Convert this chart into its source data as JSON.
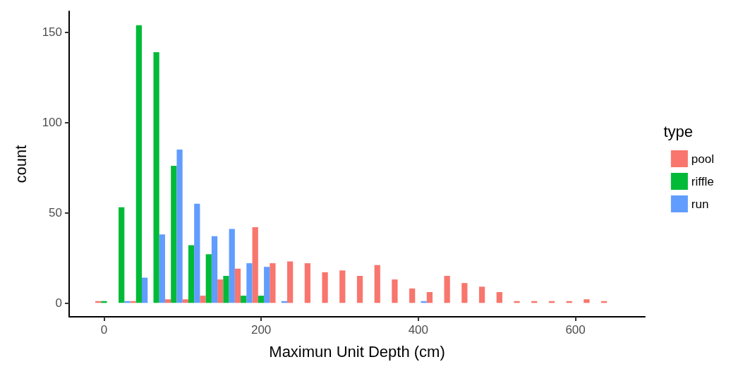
{
  "chart_data": {
    "type": "histogram",
    "xlabel": "Maximun Unit Depth (cm)",
    "ylabel": "count",
    "legend_title": "type",
    "legend": "right",
    "grid": false,
    "bins": [
      -11.1,
      11.1,
      33.3,
      55.5,
      77.7,
      99.9,
      122.1,
      144.3,
      166.5,
      188.7,
      210.9,
      233.1,
      255.3,
      277.5,
      299.7,
      321.9,
      344.1,
      366.3,
      388.5,
      410.7,
      432.9,
      455.1,
      477.3,
      499.5,
      521.7,
      543.9,
      566.1,
      588.3,
      610.5,
      632.7,
      654.9
    ],
    "series": [
      {
        "name": "pool",
        "color": "#f8766d",
        "values": [
          1,
          0,
          1,
          0,
          2,
          2,
          4,
          13,
          19,
          42,
          22,
          23,
          22,
          17,
          18,
          15,
          21,
          13,
          8,
          6,
          15,
          11,
          9,
          6,
          1,
          1,
          1,
          1,
          2,
          1
        ]
      },
      {
        "name": "riffle",
        "color": "#00ba38",
        "values": [
          1,
          53,
          154,
          139,
          76,
          32,
          27,
          15,
          4,
          4,
          0,
          0,
          0,
          0,
          0,
          0,
          0,
          0,
          0,
          0,
          0,
          0,
          0,
          0,
          0,
          0,
          0,
          0,
          0,
          0
        ]
      },
      {
        "name": "run",
        "color": "#619cff",
        "values": [
          0,
          1,
          14,
          38,
          85,
          55,
          37,
          41,
          22,
          20,
          1,
          0,
          0,
          0,
          0,
          0,
          0,
          0,
          1,
          0,
          0,
          0,
          0,
          0,
          0,
          0,
          0,
          0,
          0,
          0
        ]
      }
    ],
    "xlim": [
      -44.4,
      688.4
    ],
    "xticks": [
      0,
      200,
      400,
      600
    ],
    "ylim": [
      -7.7,
      161.7
    ],
    "yticks": [
      0,
      50,
      100,
      150
    ]
  }
}
